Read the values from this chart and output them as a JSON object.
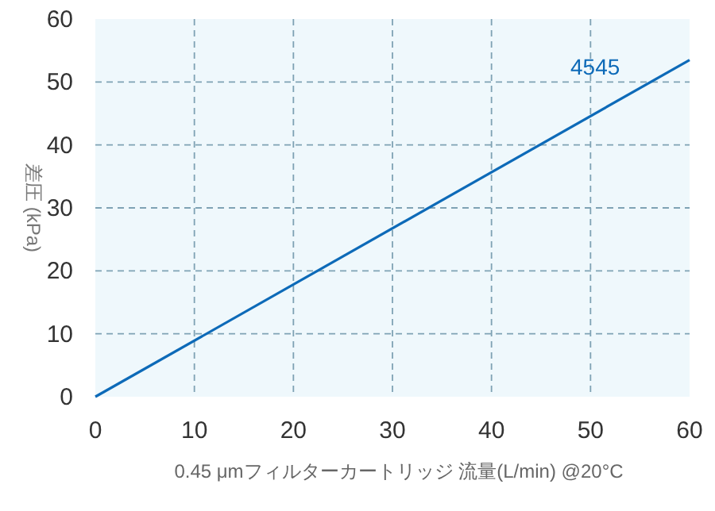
{
  "chart_data": {
    "type": "line",
    "xlabel": "0.45 μmフィルターカートリッジ 流量(L/min) @20°C",
    "ylabel": "差圧 (kPa)",
    "x": [
      0,
      60
    ],
    "series": [
      {
        "name": "4545",
        "color": "#0d6ab8",
        "values": [
          0,
          53.5
        ]
      }
    ],
    "xlim": [
      0,
      60
    ],
    "ylim": [
      0,
      60
    ],
    "xticks": [
      0,
      10,
      20,
      30,
      40,
      50,
      60
    ],
    "yticks": [
      0,
      10,
      20,
      30,
      40,
      50,
      60
    ],
    "grid": true,
    "line_style": "solid",
    "marker": "none"
  }
}
